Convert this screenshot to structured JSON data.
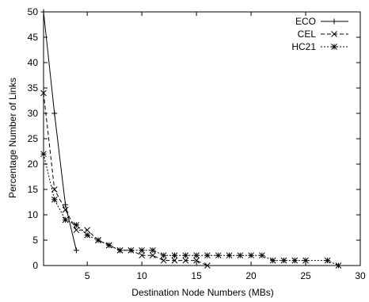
{
  "chart_data": {
    "type": "line",
    "title": "",
    "xlabel": "Destination Node Numbers (MBs)",
    "ylabel": "Percentage Number of Links",
    "xlim": [
      1,
      30
    ],
    "ylim": [
      0,
      50
    ],
    "xticks": [
      5,
      10,
      15,
      20,
      25,
      30
    ],
    "yticks": [
      0,
      5,
      10,
      15,
      20,
      25,
      30,
      35,
      40,
      45,
      50
    ],
    "grid": false,
    "legend_position": "top-right",
    "series": [
      {
        "name": "ECO",
        "marker": "plus",
        "dash": "solid",
        "points": [
          [
            1,
            50
          ],
          [
            2,
            30
          ],
          [
            3,
            12
          ],
          [
            4,
            3
          ]
        ]
      },
      {
        "name": "CEL",
        "marker": "x",
        "dash": "dashed",
        "points": [
          [
            1,
            34
          ],
          [
            2,
            15
          ],
          [
            3,
            11
          ],
          [
            4,
            7
          ],
          [
            5,
            7
          ],
          [
            6,
            5
          ],
          [
            7,
            4
          ],
          [
            8,
            3
          ],
          [
            9,
            3
          ],
          [
            10,
            2
          ],
          [
            11,
            2
          ],
          [
            12,
            1
          ],
          [
            13,
            1
          ],
          [
            14,
            1
          ],
          [
            15,
            1
          ],
          [
            16,
            0
          ]
        ]
      },
      {
        "name": "HC21",
        "marker": "star",
        "dash": "dotted",
        "points": [
          [
            1,
            22
          ],
          [
            2,
            13
          ],
          [
            3,
            9
          ],
          [
            4,
            8
          ],
          [
            5,
            6
          ],
          [
            6,
            5
          ],
          [
            7,
            4
          ],
          [
            8,
            3
          ],
          [
            9,
            3
          ],
          [
            10,
            3
          ],
          [
            11,
            3
          ],
          [
            12,
            2
          ],
          [
            13,
            2
          ],
          [
            14,
            2
          ],
          [
            15,
            2
          ],
          [
            16,
            2
          ],
          [
            17,
            2
          ],
          [
            18,
            2
          ],
          [
            19,
            2
          ],
          [
            20,
            2
          ],
          [
            21,
            2
          ],
          [
            22,
            1
          ],
          [
            23,
            1
          ],
          [
            24,
            1
          ],
          [
            25,
            1
          ],
          [
            27,
            1
          ],
          [
            28,
            0
          ]
        ]
      }
    ]
  }
}
